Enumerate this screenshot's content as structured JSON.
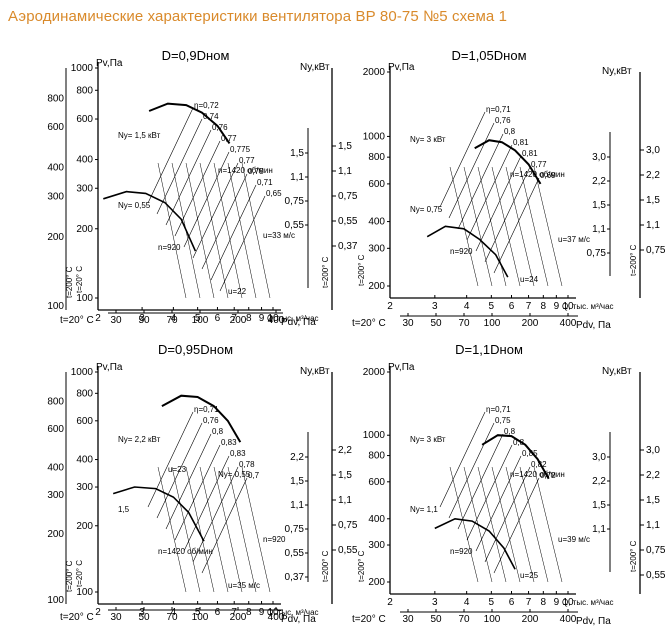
{
  "header": {
    "title": "Аэродинамические характеристики вентилятора ВР 80-75 №5 схема 1"
  },
  "chart_data": [
    {
      "type": "line",
      "title": "D=0,9Dном",
      "xlabel": "Q, тыс. м³/час",
      "ylabel_left": "Pv,Па",
      "ylabel_right": "Ny,кВт",
      "temp_left": "t=200° C",
      "temp_left2": "t=20° C",
      "temp_right": "t=200° C",
      "temp_bottom": "t=20° C",
      "bottom_label": "Pdv, Па",
      "x_ticks": [
        "2",
        "3",
        "4",
        "5",
        "6",
        "7",
        "8",
        "9",
        "10"
      ],
      "xlim": [
        2,
        10
      ],
      "y_ticks_outer": [
        "800",
        "600",
        "400",
        "300",
        "200",
        "100"
      ],
      "y_ticks_inner": [
        "1000",
        "800",
        "600",
        "400",
        "300",
        "200",
        "100"
      ],
      "ylim": [
        100,
        1000
      ],
      "right_ticks_outer": [
        "1,5",
        "1,1",
        "0,75",
        "0,55",
        "0,37"
      ],
      "right_ticks_inner": [
        "1,5",
        "1,1",
        "0,75",
        "0,55"
      ],
      "pdv_ticks": [
        "30",
        "50",
        "70",
        "100",
        "200",
        "400"
      ],
      "efficiency_labels": [
        "η=0,72",
        "0,74",
        "0,76",
        "0,77",
        "0,775",
        "0,77",
        "0,75",
        "0,71",
        "0,65"
      ],
      "annotations": [
        "Ny= 1,5 кВт",
        "Ny= 0,55",
        "n=1420 об/мин",
        "n=920",
        "u=33 м/с",
        "u=22"
      ],
      "series": [
        {
          "name": "n=1420 об/мин",
          "x": [
            3.2,
            3.8,
            4.5,
            5.2,
            6.0,
            6.7
          ],
          "y": [
            650,
            700,
            690,
            640,
            560,
            470
          ]
        },
        {
          "name": "n=920",
          "x": [
            2.1,
            2.6,
            3.1,
            3.7,
            4.3,
            4.9
          ],
          "y": [
            270,
            290,
            285,
            260,
            220,
            160
          ]
        }
      ]
    },
    {
      "type": "line",
      "title": "D=1,05Dном",
      "xlabel": "Q, тыс. м³/час",
      "ylabel_left": "Pv,Па",
      "ylabel_right": "Ny,кВт",
      "temp_left": "t=200° C",
      "temp_right": "t=200° C",
      "temp_bottom": "t=20° C",
      "bottom_label": "Pdv, Па",
      "x_ticks": [
        "2",
        "3",
        "4",
        "5",
        "6",
        "7",
        "8",
        "9",
        "10"
      ],
      "xlim": [
        2,
        10
      ],
      "y_ticks_inner": [
        "2000",
        "1000",
        "800",
        "600",
        "400",
        "300",
        "200"
      ],
      "ylim": [
        200,
        2000
      ],
      "right_ticks_outer": [
        "3,0",
        "2,2",
        "1,5",
        "1,1",
        "0,75"
      ],
      "right_ticks_inner": [
        "3,0",
        "2,2",
        "1,5",
        "1,1",
        "0,75"
      ],
      "pdv_ticks": [
        "30",
        "50",
        "70",
        "100",
        "200",
        "400"
      ],
      "efficiency_labels": [
        "η=0,71",
        "0,76",
        "0,8",
        "0,81",
        "0,81",
        "0,77",
        "0,69"
      ],
      "annotations": [
        "Ny= 3 кВт",
        "Ny= 0,75",
        "n=1420 об/мин",
        "n=920",
        "u=37 м/с",
        "u=24"
      ],
      "series": [
        {
          "name": "n=1420 об/мин",
          "x": [
            4.3,
            4.9,
            5.5,
            6.2,
            7.0,
            7.8
          ],
          "y": [
            880,
            960,
            940,
            860,
            740,
            600
          ]
        },
        {
          "name": "n=920",
          "x": [
            2.8,
            3.3,
            3.9,
            4.5,
            5.2,
            5.8
          ],
          "y": [
            340,
            380,
            370,
            330,
            280,
            220
          ]
        }
      ]
    },
    {
      "type": "line",
      "title": "D=0,95Dном",
      "xlabel": "Q, тыс. м³/час",
      "ylabel_left": "Pv,Па",
      "ylabel_right": "Ny,кВт",
      "temp_left": "t=200° C",
      "temp_left2": "t=20° C",
      "temp_right": "t=200° C",
      "temp_bottom": "t=20° C",
      "bottom_label": "Pdv, Па",
      "x_ticks": [
        "2",
        "3",
        "4",
        "5",
        "6",
        "7",
        "8",
        "9",
        "10"
      ],
      "xlim": [
        2,
        10
      ],
      "y_ticks_outer": [
        "800",
        "600",
        "400",
        "300",
        "200",
        "100"
      ],
      "y_ticks_inner": [
        "1000",
        "800",
        "600",
        "400",
        "300",
        "200",
        "100"
      ],
      "ylim": [
        100,
        1000
      ],
      "right_ticks_outer": [
        "2,2",
        "1,5",
        "1,1",
        "0,75",
        "0,55"
      ],
      "right_ticks_inner": [
        "2,2",
        "1,5",
        "1,1",
        "0,75",
        "0,55",
        "0,37"
      ],
      "pdv_ticks": [
        "30",
        "50",
        "70",
        "100",
        "200",
        "400"
      ],
      "efficiency_labels": [
        "η=0,71",
        "0,76",
        "0,8",
        "0,83",
        "0,83",
        "0,78",
        "0,7"
      ],
      "annotations": [
        "Ny= 2,2 кВт",
        "1,5",
        "Ny= 0,55",
        "n=1420 об/мин",
        "n=920",
        "u=35 м/с",
        "u=23"
      ],
      "series": [
        {
          "name": "n=1420 об/мин",
          "x": [
            3.6,
            4.3,
            5.0,
            5.8,
            6.6,
            7.4
          ],
          "y": [
            700,
            780,
            770,
            700,
            600,
            480
          ]
        },
        {
          "name": "n=920",
          "x": [
            2.3,
            2.8,
            3.4,
            4.0,
            4.6,
            5.3
          ],
          "y": [
            280,
            300,
            295,
            270,
            230,
            170
          ]
        }
      ]
    },
    {
      "type": "line",
      "title": "D=1,1Dном",
      "xlabel": "Q, тыс. м³/час",
      "ylabel_left": "Pv,Па",
      "ylabel_right": "Ny,кВт",
      "temp_left": "t=200° C",
      "temp_right": "t=200° C",
      "temp_bottom": "t=20° C",
      "bottom_label": "Pdv, Па",
      "x_ticks": [
        "2",
        "3",
        "4",
        "5",
        "6",
        "7",
        "8",
        "9",
        "10"
      ],
      "xlim": [
        2,
        10
      ],
      "y_ticks_inner": [
        "2000",
        "1000",
        "800",
        "600",
        "400",
        "300",
        "200"
      ],
      "ylim": [
        200,
        2000
      ],
      "right_ticks_outer": [
        "3,0",
        "2,2",
        "1,5",
        "1,1",
        "0,75",
        "0,55"
      ],
      "right_ticks_inner": [
        "3,0",
        "2,2",
        "1,5",
        "1,1"
      ],
      "pdv_ticks": [
        "30",
        "50",
        "70",
        "100",
        "200",
        "400"
      ],
      "efficiency_labels": [
        "η=0,71",
        "0,75",
        "0,8",
        "0,8",
        "0,85",
        "0,82",
        "0,72"
      ],
      "annotations": [
        "Ny= 3 кВт",
        "Ny= 1,1",
        "n=1420 об/мин",
        "n=920",
        "u=39 м/с",
        "u=25"
      ],
      "series": [
        {
          "name": "n=1420 об/мин",
          "x": [
            4.6,
            5.3,
            6.0,
            6.8,
            7.6,
            8.4
          ],
          "y": [
            900,
            1000,
            990,
            900,
            770,
            620
          ]
        },
        {
          "name": "n=920",
          "x": [
            3.0,
            3.6,
            4.2,
            4.9,
            5.6,
            6.2
          ],
          "y": [
            360,
            400,
            390,
            350,
            290,
            230
          ]
        }
      ]
    }
  ]
}
